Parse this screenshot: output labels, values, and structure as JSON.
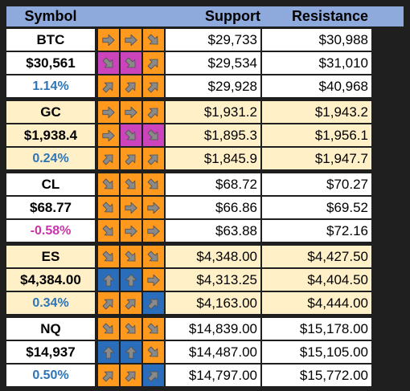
{
  "header": {
    "symbol": "Symbol",
    "support": "Support",
    "resistance": "Resistance"
  },
  "colors": {
    "header_bg": "#8ea9db",
    "orange": "#ff9a1f",
    "magenta": "#cc44bb",
    "blue": "#2a6ebb",
    "row_white": "#ffffff",
    "row_cream": "#fff0c8",
    "pct_positive": "#2e75b6",
    "pct_negative": "#cc33aa"
  },
  "blocks": [
    {
      "bg": "#ffffff",
      "rows": [
        {
          "label": "BTC",
          "kind": "sym",
          "signals": [
            [
              "orange",
              "right"
            ],
            [
              "orange",
              "right"
            ],
            [
              "orange",
              "down-right"
            ]
          ],
          "support": "$29,733",
          "resistance": "$30,988"
        },
        {
          "label": "$30,561",
          "kind": "price",
          "signals": [
            [
              "magenta",
              "down-right"
            ],
            [
              "magenta",
              "down-right"
            ],
            [
              "orange",
              "up-right"
            ]
          ],
          "support": "$29,534",
          "resistance": "$31,010"
        },
        {
          "label": "1.14%",
          "kind": "pct",
          "color": "#2e75b6",
          "signals": [
            [
              "orange",
              "up-right"
            ],
            [
              "orange",
              "up-right"
            ],
            [
              "orange",
              "up-right"
            ]
          ],
          "support": "$29,928",
          "resistance": "$40,968"
        }
      ]
    },
    {
      "bg": "#fff0c8",
      "rows": [
        {
          "label": "GC",
          "kind": "sym",
          "signals": [
            [
              "orange",
              "right"
            ],
            [
              "orange",
              "right"
            ],
            [
              "orange",
              "up-right"
            ]
          ],
          "support": "$1,931.2",
          "resistance": "$1,943.2"
        },
        {
          "label": "$1,938.4",
          "kind": "price",
          "signals": [
            [
              "orange",
              "right"
            ],
            [
              "magenta",
              "down-right"
            ],
            [
              "magenta",
              "down-right"
            ]
          ],
          "support": "$1,895.3",
          "resistance": "$1,956.1"
        },
        {
          "label": "0.24%",
          "kind": "pct",
          "color": "#2e75b6",
          "signals": [
            [
              "orange",
              "up-right"
            ],
            [
              "orange",
              "up-right"
            ],
            [
              "orange",
              "up-right"
            ]
          ],
          "support": "$1,845.9",
          "resistance": "$1,947.7"
        }
      ]
    },
    {
      "bg": "#ffffff",
      "rows": [
        {
          "label": "CL",
          "kind": "sym",
          "signals": [
            [
              "orange",
              "down-right"
            ],
            [
              "orange",
              "down-right"
            ],
            [
              "orange",
              "down-right"
            ]
          ],
          "support": "$68.72",
          "resistance": "$70.27"
        },
        {
          "label": "$68.77",
          "kind": "price",
          "signals": [
            [
              "orange",
              "down-right"
            ],
            [
              "orange",
              "right"
            ],
            [
              "orange",
              "right"
            ]
          ],
          "support": "$66.86",
          "resistance": "$69.52"
        },
        {
          "label": "-0.58%",
          "kind": "pct",
          "color": "#cc33aa",
          "signals": [
            [
              "orange",
              "down-right"
            ],
            [
              "orange",
              "right"
            ],
            [
              "orange",
              "right"
            ]
          ],
          "support": "$63.88",
          "resistance": "$72.16"
        }
      ]
    },
    {
      "bg": "#fff0c8",
      "rows": [
        {
          "label": "ES",
          "kind": "sym",
          "signals": [
            [
              "orange",
              "down-right"
            ],
            [
              "orange",
              "down-right"
            ],
            [
              "orange",
              "down-right"
            ]
          ],
          "support": "$4,348.00",
          "resistance": "$4,427.50"
        },
        {
          "label": "$4,384.00",
          "kind": "price",
          "signals": [
            [
              "blue",
              "up"
            ],
            [
              "blue",
              "up"
            ],
            [
              "orange",
              "right"
            ]
          ],
          "support": "$4,313.25",
          "resistance": "$4,404.50"
        },
        {
          "label": "0.34%",
          "kind": "pct",
          "color": "#2e75b6",
          "signals": [
            [
              "orange",
              "up-right"
            ],
            [
              "orange",
              "up-right"
            ],
            [
              "blue",
              "up-right"
            ]
          ],
          "support": "$4,163.00",
          "resistance": "$4,444.00"
        }
      ]
    },
    {
      "bg": "#ffffff",
      "rows": [
        {
          "label": "NQ",
          "kind": "sym",
          "signals": [
            [
              "orange",
              "down-right"
            ],
            [
              "orange",
              "down-right"
            ],
            [
              "orange",
              "down-right"
            ]
          ],
          "support": "$14,839.00",
          "resistance": "$15,178.00"
        },
        {
          "label": "$14,937",
          "kind": "price",
          "signals": [
            [
              "blue",
              "up"
            ],
            [
              "blue",
              "up"
            ],
            [
              "orange",
              "down-right"
            ]
          ],
          "support": "$14,487.00",
          "resistance": "$15,105.00"
        },
        {
          "label": "0.50%",
          "kind": "pct",
          "color": "#2e75b6",
          "signals": [
            [
              "orange",
              "up-right"
            ],
            [
              "orange",
              "up-right"
            ],
            [
              "blue",
              "up-right"
            ]
          ],
          "support": "$14,797.00",
          "resistance": "$15,772.00"
        }
      ]
    }
  ]
}
